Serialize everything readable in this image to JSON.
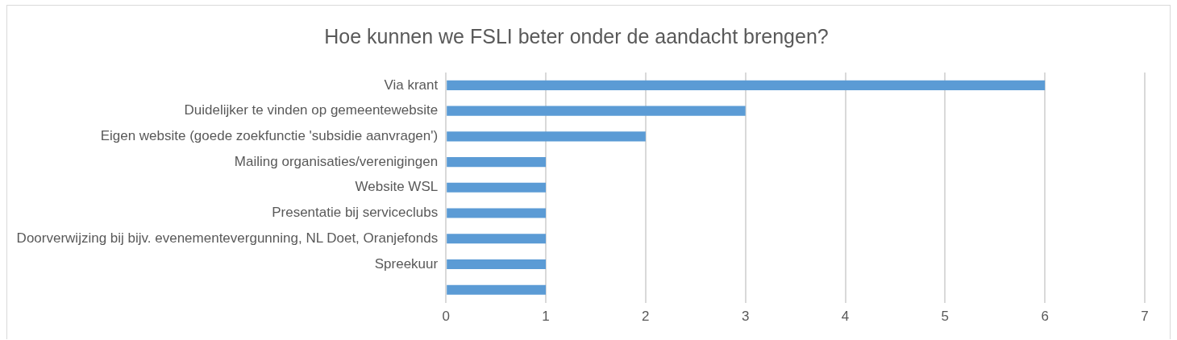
{
  "chart_data": {
    "type": "bar",
    "orientation": "horizontal",
    "title": "Hoe kunnen we FSLI beter onder de aandacht brengen?",
    "categories": [
      "Via krant",
      "Duidelijker te vinden op gemeentewebsite",
      "Eigen website (goede zoekfunctie 'subsidie aanvragen')",
      "Mailing organisaties/verenigingen",
      "Website WSL",
      "Presentatie bij serviceclubs",
      "Doorverwijzing bij bijv. evenementevergunning, NL Doet, Oranjefonds",
      "Spreekuur",
      null
    ],
    "values": [
      6,
      3,
      2,
      1,
      1,
      1,
      1,
      1,
      1
    ],
    "color": "#5b9bd5",
    "xlim": [
      0,
      7
    ],
    "xticks": [
      0,
      1,
      2,
      3,
      4,
      5,
      6,
      7
    ],
    "grid": "x",
    "legend": false
  }
}
